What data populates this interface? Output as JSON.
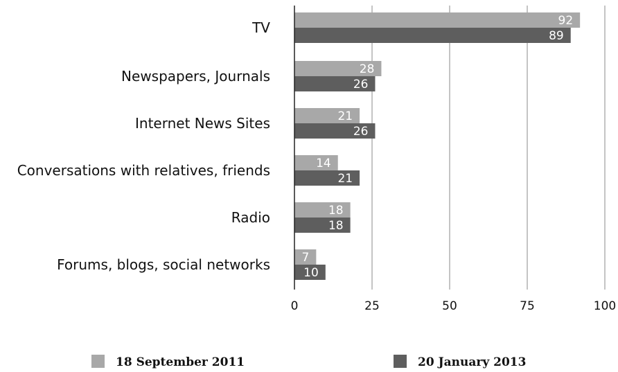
{
  "chart_data": {
    "type": "bar",
    "orientation": "horizontal",
    "categories": [
      "TV",
      "Newspapers, Journals",
      "Internet News Sites",
      "Conversations with relatives, friends",
      "Radio",
      "Forums, blogs, social networks"
    ],
    "series": [
      {
        "name": "18 September 2011",
        "color": "#a8a8a8",
        "values": [
          92,
          28,
          21,
          14,
          18,
          7
        ]
      },
      {
        "name": "20 January 2013",
        "color": "#5e5e5e",
        "values": [
          89,
          26,
          26,
          21,
          18,
          10
        ]
      }
    ],
    "xlim": [
      0,
      100
    ],
    "xticks": [
      0,
      25,
      50,
      75,
      100
    ],
    "grid": true,
    "data_labels": true,
    "legend_position": "bottom"
  }
}
